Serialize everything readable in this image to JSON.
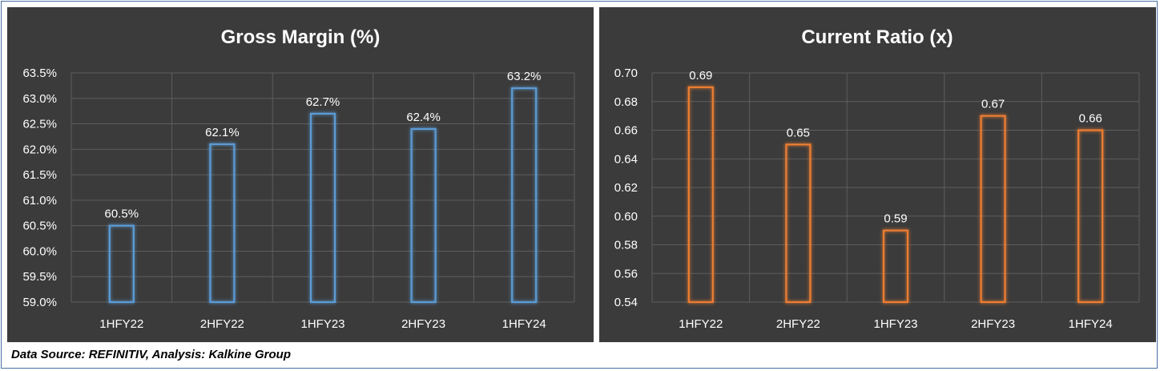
{
  "source_note": "Data Source: REFINITIV, Analysis: Kalkine Group",
  "chart_data": [
    {
      "type": "bar",
      "title": "Gross Margin (%)",
      "xlabel": "",
      "ylabel": "",
      "categories": [
        "1HFY22",
        "2HFY22",
        "1HFY23",
        "2HFY23",
        "1HFY24"
      ],
      "values": [
        60.5,
        62.1,
        62.7,
        62.4,
        63.2
      ],
      "data_labels": [
        "60.5%",
        "62.1%",
        "62.7%",
        "62.4%",
        "63.2%"
      ],
      "ylim": [
        59.0,
        63.5
      ],
      "yticks": [
        "59.0%",
        "59.5%",
        "60.0%",
        "60.5%",
        "61.0%",
        "61.5%",
        "62.0%",
        "62.5%",
        "63.0%",
        "63.5%"
      ],
      "ytick_values": [
        59.0,
        59.5,
        60.0,
        60.5,
        61.0,
        61.5,
        62.0,
        62.5,
        63.0,
        63.5
      ],
      "grid": true,
      "bar_color": "#5b9bd5",
      "glow_color": "#2e75b6",
      "background": "#3b3b3b",
      "text_color": "#ffffff"
    },
    {
      "type": "bar",
      "title": "Current Ratio (x)",
      "xlabel": "",
      "ylabel": "",
      "categories": [
        "1HFY22",
        "2HFY22",
        "1HFY23",
        "2HFY23",
        "1HFY24"
      ],
      "values": [
        0.69,
        0.65,
        0.59,
        0.67,
        0.66
      ],
      "data_labels": [
        "0.69",
        "0.65",
        "0.59",
        "0.67",
        "0.66"
      ],
      "ylim": [
        0.54,
        0.7
      ],
      "yticks": [
        "0.54",
        "0.56",
        "0.58",
        "0.60",
        "0.62",
        "0.64",
        "0.66",
        "0.68",
        "0.70"
      ],
      "ytick_values": [
        0.54,
        0.56,
        0.58,
        0.6,
        0.62,
        0.64,
        0.66,
        0.68,
        0.7
      ],
      "grid": true,
      "bar_color": "#ed7d31",
      "glow_color": "#c55a11",
      "background": "#3b3b3b",
      "text_color": "#ffffff"
    }
  ]
}
